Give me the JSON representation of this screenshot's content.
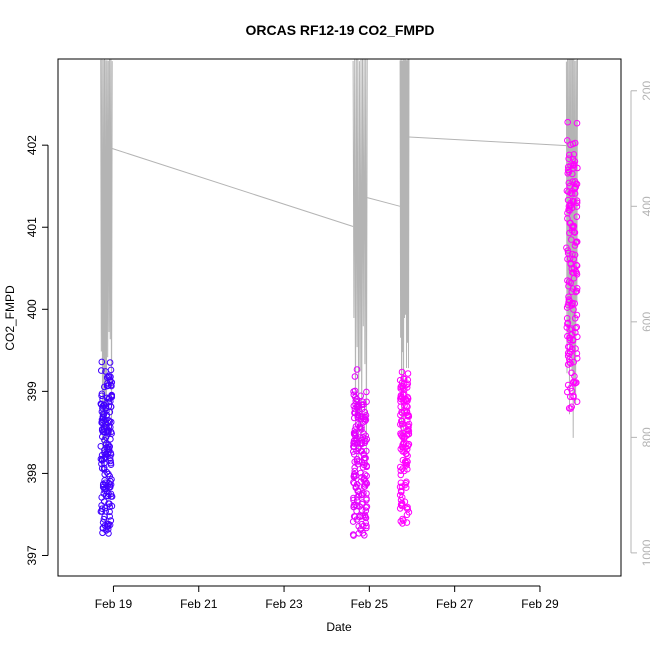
{
  "chart_data": {
    "type": "scatter",
    "title": "ORCAS RF12-19 CO2_FMPD",
    "xlabel": "Date",
    "ylabel": "CO2_FMPD",
    "x_range_days": [
      17.7,
      30.9
    ],
    "ylim": [
      396.75,
      403.05
    ],
    "y_ticks": [
      397,
      398,
      399,
      400,
      401,
      402
    ],
    "x_ticks": [
      {
        "label": "Feb 19",
        "day": 19
      },
      {
        "label": "Feb 21",
        "day": 21
      },
      {
        "label": "Feb 23",
        "day": 23
      },
      {
        "label": "Feb 25",
        "day": 25
      },
      {
        "label": "Feb 27",
        "day": 27
      },
      {
        "label": "Feb 29",
        "day": 29
      }
    ],
    "right_axis": {
      "description": "pressure (grey trace)",
      "ticks": [
        200,
        400,
        600,
        800,
        1000
      ],
      "range": [
        1040,
        145
      ],
      "color": "#b4b4b4",
      "label": ""
    },
    "series": [
      {
        "color_start": "#3f00ff",
        "color_end": "#ff00ff",
        "segments": [
          {
            "day_start": 18.7,
            "day_end": 18.97,
            "co2_min": 396.85,
            "co2_max": 399.6,
            "mean": 398.0,
            "n": 170
          },
          {
            "day_start": 24.62,
            "day_end": 24.95,
            "co2_min": 396.85,
            "co2_max": 399.4,
            "mean": 398.4,
            "n": 180
          },
          {
            "day_start": 25.72,
            "day_end": 25.93,
            "co2_min": 397.0,
            "co2_max": 399.6,
            "mean": 398.3,
            "n": 130
          },
          {
            "day_start": 29.62,
            "day_end": 29.88,
            "co2_min": 398.0,
            "co2_max": 402.75,
            "mean": 399.8,
            "n": 160
          }
        ]
      }
    ],
    "pressure_trace": {
      "color": "#b4b4b4",
      "transits": [
        {
          "day_start": 18.97,
          "day_end": 24.62,
          "pressure_start": 300,
          "pressure_end": 435
        },
        {
          "day_start": 24.95,
          "day_end": 25.72,
          "pressure_start": 385,
          "pressure_end": 400
        },
        {
          "day_start": 25.93,
          "day_end": 29.62,
          "pressure_start": 280,
          "pressure_end": 295
        }
      ]
    },
    "grid": false,
    "legend": "none"
  }
}
